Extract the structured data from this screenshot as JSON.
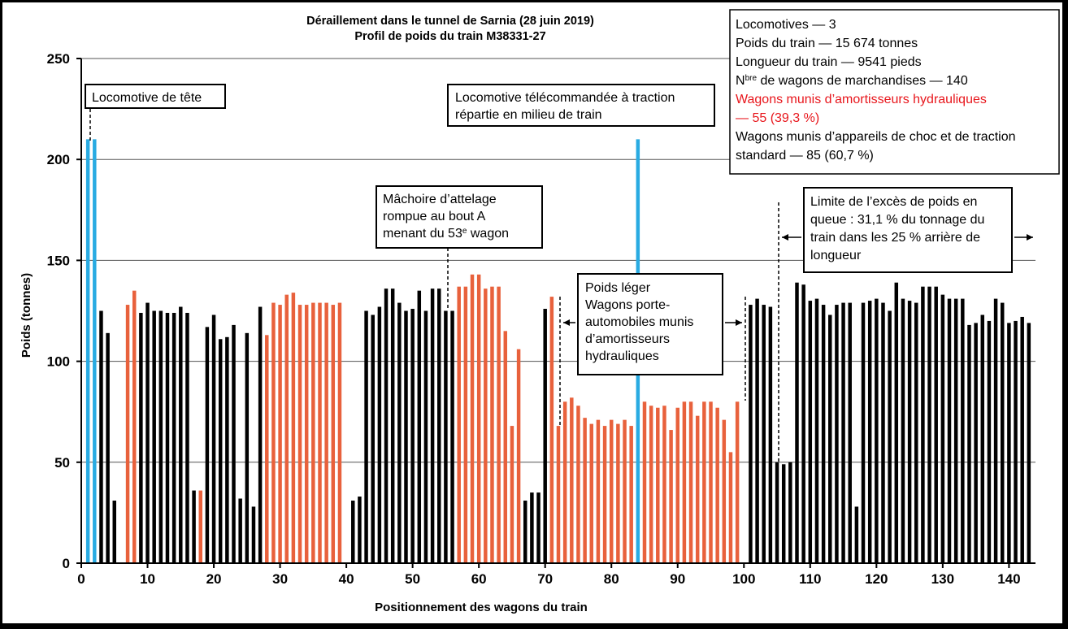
{
  "chart_data": {
    "type": "bar",
    "title": [
      "Déraillement dans le tunnel de Sarnia (28 juin 2019)",
      "Profil de poids du train M38331-27"
    ],
    "xlabel": "Positionnement des wagons du train",
    "ylabel": "Poids (tonnes)",
    "xlim": [
      0,
      144
    ],
    "ylim": [
      0,
      250
    ],
    "xticks": [
      0,
      10,
      20,
      30,
      40,
      50,
      60,
      70,
      80,
      90,
      100,
      110,
      120,
      130,
      140
    ],
    "yticks": [
      0,
      50,
      100,
      150,
      200,
      250
    ],
    "grid": "horizontal",
    "colors": {
      "locomotive": "#29ABE2",
      "hydraulic": "#E8613C",
      "standard": "#000000"
    },
    "x": [
      1,
      2,
      3,
      4,
      5,
      6,
      7,
      8,
      9,
      10,
      11,
      12,
      13,
      14,
      15,
      16,
      17,
      18,
      19,
      20,
      21,
      22,
      23,
      24,
      25,
      26,
      27,
      28,
      29,
      30,
      31,
      32,
      33,
      34,
      35,
      36,
      37,
      38,
      39,
      40,
      41,
      42,
      43,
      44,
      45,
      46,
      47,
      48,
      49,
      50,
      51,
      52,
      53,
      54,
      55,
      56,
      57,
      58,
      59,
      60,
      61,
      62,
      63,
      64,
      65,
      66,
      67,
      68,
      69,
      70,
      71,
      72,
      73,
      74,
      75,
      76,
      77,
      78,
      79,
      80,
      81,
      82,
      83,
      84,
      85,
      86,
      87,
      88,
      89,
      90,
      91,
      92,
      93,
      94,
      95,
      96,
      97,
      98,
      99,
      100,
      101,
      102,
      103,
      104,
      105,
      106,
      107,
      108,
      109,
      110,
      111,
      112,
      113,
      114,
      115,
      116,
      117,
      118,
      119,
      120,
      121,
      122,
      123,
      124,
      125,
      126,
      127,
      128,
      129,
      130,
      131,
      132,
      133,
      134,
      135,
      136,
      137,
      138,
      139,
      140,
      141,
      142,
      143
    ],
    "values": [
      210,
      210,
      125,
      114,
      31,
      0,
      128,
      135,
      124,
      129,
      125,
      125,
      124,
      124,
      127,
      124,
      36,
      36,
      117,
      123,
      111,
      112,
      118,
      32,
      114,
      28,
      127,
      113,
      129,
      128,
      133,
      134,
      128,
      128,
      129,
      129,
      129,
      128,
      129,
      0,
      31,
      33,
      125,
      123,
      127,
      136,
      136,
      129,
      125,
      126,
      135,
      125,
      136,
      136,
      125,
      125,
      137,
      137,
      143,
      143,
      136,
      137,
      137,
      115,
      68,
      106,
      31,
      35,
      35,
      126,
      132,
      68,
      80,
      82,
      78,
      72,
      69,
      71,
      68,
      71,
      69,
      71,
      68,
      210,
      80,
      78,
      77,
      78,
      66,
      77,
      80,
      80,
      73,
      80,
      80,
      77,
      71,
      55,
      80,
      0,
      128,
      131,
      128,
      127,
      50,
      49,
      50,
      139,
      138,
      130,
      131,
      128,
      123,
      128,
      129,
      129,
      28,
      129,
      130,
      131,
      129,
      125,
      139,
      131,
      130,
      129,
      137,
      137,
      137,
      133,
      131,
      131,
      131,
      118,
      119,
      123,
      120,
      131,
      129,
      119,
      120,
      122,
      119
    ],
    "categories": [
      "locomotive",
      "locomotive",
      "standard",
      "standard",
      "standard",
      "standard",
      "hydraulic",
      "hydraulic",
      "standard",
      "standard",
      "standard",
      "standard",
      "standard",
      "standard",
      "standard",
      "standard",
      "standard",
      "hydraulic",
      "standard",
      "standard",
      "standard",
      "standard",
      "standard",
      "standard",
      "standard",
      "standard",
      "standard",
      "hydraulic",
      "hydraulic",
      "hydraulic",
      "hydraulic",
      "hydraulic",
      "hydraulic",
      "hydraulic",
      "hydraulic",
      "hydraulic",
      "hydraulic",
      "hydraulic",
      "hydraulic",
      "standard",
      "standard",
      "standard",
      "standard",
      "standard",
      "standard",
      "standard",
      "standard",
      "standard",
      "standard",
      "standard",
      "standard",
      "standard",
      "standard",
      "standard",
      "standard",
      "standard",
      "hydraulic",
      "hydraulic",
      "hydraulic",
      "hydraulic",
      "hydraulic",
      "hydraulic",
      "hydraulic",
      "hydraulic",
      "hydraulic",
      "hydraulic",
      "standard",
      "standard",
      "standard",
      "standard",
      "hydraulic",
      "hydraulic",
      "hydraulic",
      "hydraulic",
      "hydraulic",
      "hydraulic",
      "hydraulic",
      "hydraulic",
      "hydraulic",
      "hydraulic",
      "hydraulic",
      "hydraulic",
      "hydraulic",
      "locomotive",
      "hydraulic",
      "hydraulic",
      "hydraulic",
      "hydraulic",
      "hydraulic",
      "hydraulic",
      "hydraulic",
      "hydraulic",
      "hydraulic",
      "hydraulic",
      "hydraulic",
      "hydraulic",
      "hydraulic",
      "hydraulic",
      "hydraulic",
      "hydraulic",
      "standard",
      "standard",
      "standard",
      "standard",
      "standard",
      "standard",
      "standard",
      "standard",
      "standard",
      "standard",
      "standard",
      "standard",
      "standard",
      "standard",
      "standard",
      "standard",
      "standard",
      "standard",
      "standard",
      "standard",
      "standard",
      "standard",
      "standard",
      "standard",
      "standard",
      "standard",
      "standard",
      "standard",
      "standard",
      "standard",
      "standard",
      "standard",
      "standard",
      "standard",
      "standard",
      "standard",
      "standard",
      "standard",
      "standard",
      "standard",
      "standard",
      "standard",
      "standard"
    ],
    "annotations": {
      "lead_loco": "Locomotive de tête",
      "remote_loco": [
        "Locomotive télécommandée à traction",
        "répartie  en milieu de train"
      ],
      "knuckle": [
        "Mâchoire d’attelage",
        "rompue au bout A",
        "menant du 53",
        "e",
        " wagon"
      ],
      "light": [
        "Poids léger",
        "Wagons porte-",
        "automobiles munis",
        "d’amortisseurs",
        "hydrauliques"
      ],
      "tail": [
        "Limite de l’excès de poids en",
        "queue : 31,1 % du tonnage du",
        "train dans les 25 % arrière de",
        "longueur"
      ]
    },
    "info_box": {
      "locomotives": "Locomotives — 3",
      "weight": "Poids du train — 15 674 tonnes",
      "length": "Longueur du train — 9541 pieds",
      "wagons_prefix": "N",
      "wagons_sup": "bre",
      "wagons_rest": " de wagons de marchandises — 140",
      "hydraulic_1": "Wagons munis d’amortisseurs hydrauliques",
      "hydraulic_2": "— 55 (39,3 %)",
      "standard_1": "Wagons munis d’appareils de choc et de traction",
      "standard_2": "standard — 85 (60,7 %)",
      "hydraulic_color": "#E8161C"
    }
  }
}
